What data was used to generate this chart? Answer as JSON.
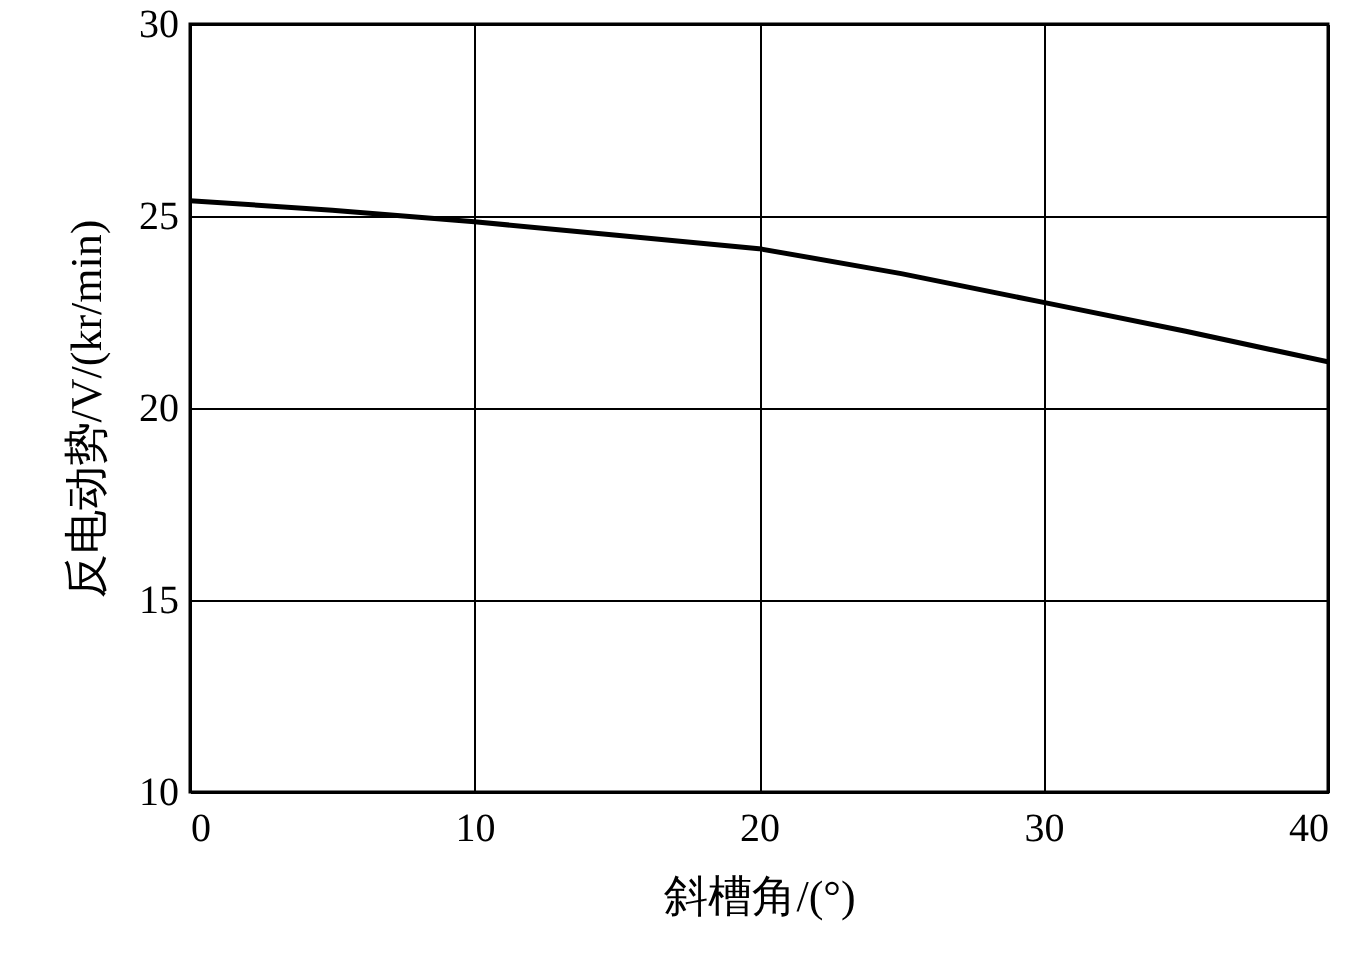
{
  "chart_data": {
    "type": "line",
    "xlabel": "斜槽角/(°)",
    "ylabel": "反电动势/V/(kr/min)",
    "series": [
      {
        "color": "#000000",
        "x": [
          0,
          5,
          10,
          15,
          20,
          25,
          30,
          35,
          40
        ],
        "values": [
          25.4,
          25.15,
          24.85,
          24.5,
          24.15,
          23.5,
          22.75,
          22.0,
          21.2
        ]
      }
    ],
    "xlim": [
      0,
      40
    ],
    "xticks": [
      0,
      10,
      20,
      30,
      40
    ],
    "ylim": [
      10,
      30
    ],
    "yticks": [
      10,
      15,
      20,
      25,
      30
    ],
    "grid": true,
    "marker": "none",
    "line_style": "solid"
  }
}
